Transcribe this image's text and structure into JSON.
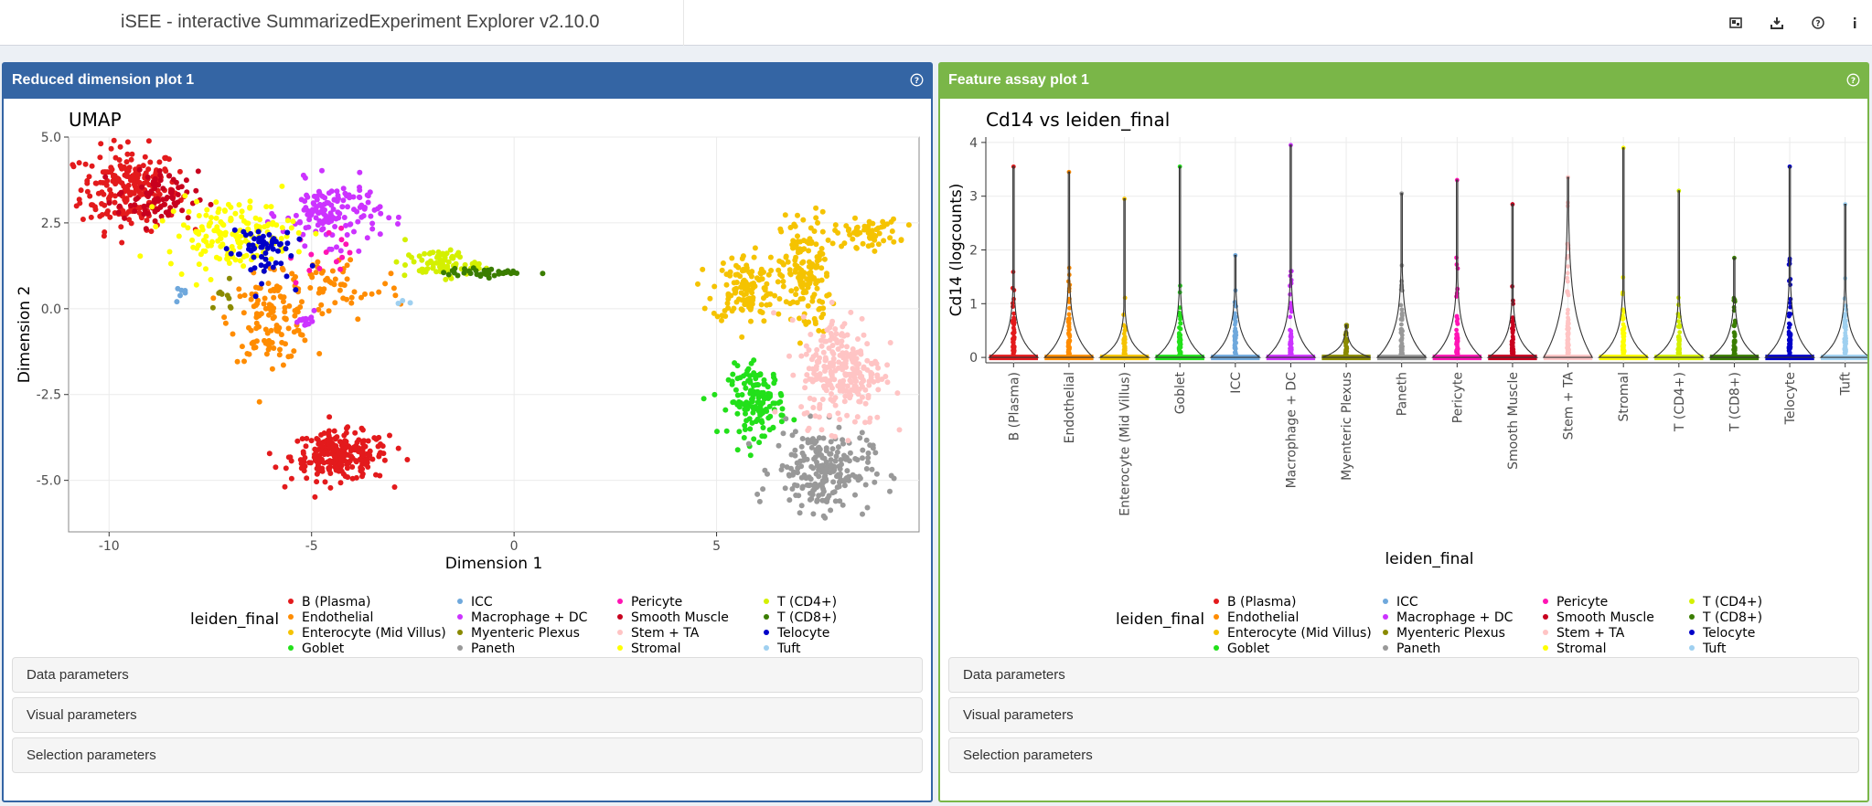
{
  "app": {
    "title": "iSEE - interactive SummarizedExperiment Explorer v2.10.0"
  },
  "toolbar": {
    "buttons": [
      {
        "name": "organize-panels-icon"
      },
      {
        "name": "download-icon"
      },
      {
        "name": "question-circle-icon"
      },
      {
        "name": "info-icon"
      }
    ]
  },
  "colors": {
    "blue_panel": "#3465a4",
    "green_panel": "#7ab648"
  },
  "legend": {
    "title": "leiden_final",
    "items": [
      {
        "label": "B (Plasma)",
        "color": "#e31a1c"
      },
      {
        "label": "Endothelial",
        "color": "#ff8c00"
      },
      {
        "label": "Enterocyte (Mid Villus)",
        "color": "#f5c300"
      },
      {
        "label": "Goblet",
        "color": "#22e01a"
      },
      {
        "label": "ICC",
        "color": "#6fa8dc"
      },
      {
        "label": "Macrophage + DC",
        "color": "#cc33ff"
      },
      {
        "label": "Myenteric Plexus",
        "color": "#8a8a00"
      },
      {
        "label": "Paneth",
        "color": "#999999"
      },
      {
        "label": "Pericyte",
        "color": "#ff14b4"
      },
      {
        "label": "Smooth Muscle",
        "color": "#c8001e"
      },
      {
        "label": "Stem + TA",
        "color": "#ffc4c4"
      },
      {
        "label": "Stromal",
        "color": "#ffff00"
      },
      {
        "label": "T (CD4+)",
        "color": "#d4f000"
      },
      {
        "label": "T (CD8+)",
        "color": "#3a7d00"
      },
      {
        "label": "Telocyte",
        "color": "#0000c8"
      },
      {
        "label": "Tuft",
        "color": "#9fd0f0"
      }
    ]
  },
  "panel_left": {
    "title": "Reduced dimension plot 1",
    "accordions": [
      "Data parameters",
      "Visual parameters",
      "Selection parameters"
    ]
  },
  "panel_right": {
    "title": "Feature assay plot 1",
    "accordions": [
      "Data parameters",
      "Visual parameters",
      "Selection parameters"
    ]
  },
  "chart_data": [
    {
      "type": "scatter",
      "title": "UMAP",
      "xlabel": "Dimension 1",
      "ylabel": "Dimension 2",
      "xlim": [
        -11,
        10
      ],
      "ylim": [
        -6.5,
        5
      ],
      "xticks": [
        -10,
        -5,
        0,
        5
      ],
      "yticks": [
        5.0,
        2.5,
        0.0,
        -2.5,
        -5.0
      ],
      "ytick_labels": [
        "5.0",
        "2.5",
        "0.0",
        "-2.5",
        "-5.0"
      ],
      "grid": true,
      "clusters": [
        {
          "name": "B (Plasma)",
          "cx": -9.5,
          "cy": 3.5,
          "sx": 0.6,
          "sy": 0.6,
          "n": 220
        },
        {
          "name": "B (Plasma)",
          "cx": -4.3,
          "cy": -4.3,
          "sx": 0.6,
          "sy": 0.35,
          "n": 240
        },
        {
          "name": "Endothelial",
          "cx": -6.0,
          "cy": -0.3,
          "sx": 0.5,
          "sy": 0.6,
          "n": 120
        },
        {
          "name": "Endothelial",
          "cx": -4.5,
          "cy": 0.6,
          "sx": 0.9,
          "sy": 0.5,
          "n": 60
        },
        {
          "name": "Enterocyte (Mid Villus)",
          "cx": 5.7,
          "cy": 0.6,
          "sx": 0.4,
          "sy": 0.5,
          "n": 130
        },
        {
          "name": "Enterocyte (Mid Villus)",
          "cx": 7.2,
          "cy": 1.0,
          "sx": 0.3,
          "sy": 0.9,
          "n": 150
        },
        {
          "name": "Enterocyte (Mid Villus)",
          "cx": 8.7,
          "cy": 2.2,
          "sx": 0.4,
          "sy": 0.2,
          "n": 60
        },
        {
          "name": "Goblet",
          "cx": 6.0,
          "cy": -2.7,
          "sx": 0.35,
          "sy": 0.5,
          "n": 150
        },
        {
          "name": "ICC",
          "cx": -8.2,
          "cy": 0.5,
          "sx": 0.1,
          "sy": 0.1,
          "n": 6
        },
        {
          "name": "Macrophage + DC",
          "cx": -4.5,
          "cy": 2.8,
          "sx": 0.6,
          "sy": 0.45,
          "n": 140
        },
        {
          "name": "Macrophage + DC",
          "cx": -5.1,
          "cy": -0.4,
          "sx": 0.1,
          "sy": 0.15,
          "n": 15
        },
        {
          "name": "Myenteric Plexus",
          "cx": -7.2,
          "cy": 0.3,
          "sx": 0.2,
          "sy": 0.2,
          "n": 10
        },
        {
          "name": "Paneth",
          "cx": 7.6,
          "cy": -4.7,
          "sx": 0.6,
          "sy": 0.6,
          "n": 220
        },
        {
          "name": "Pericyte",
          "cx": -4.8,
          "cy": 1.5,
          "sx": 0.4,
          "sy": 0.4,
          "n": 15
        },
        {
          "name": "Smooth Muscle",
          "cx": -8.8,
          "cy": 3.2,
          "sx": 0.5,
          "sy": 0.4,
          "n": 80
        },
        {
          "name": "Stem + TA",
          "cx": 8.1,
          "cy": -1.8,
          "sx": 0.5,
          "sy": 0.8,
          "n": 260
        },
        {
          "name": "Stromal",
          "cx": -7.0,
          "cy": 2.2,
          "sx": 0.8,
          "sy": 0.5,
          "n": 160
        },
        {
          "name": "T (CD4+)",
          "cx": -1.8,
          "cy": 1.3,
          "sx": 0.45,
          "sy": 0.2,
          "n": 80
        },
        {
          "name": "T (CD8+)",
          "cx": -0.7,
          "cy": 1.05,
          "sx": 0.5,
          "sy": 0.06,
          "n": 40
        },
        {
          "name": "Telocyte",
          "cx": -6.3,
          "cy": 1.7,
          "sx": 0.4,
          "sy": 0.45,
          "n": 60
        },
        {
          "name": "Tuft",
          "cx": -2.7,
          "cy": 0.2,
          "sx": 0.08,
          "sy": 0.05,
          "n": 3
        }
      ]
    },
    {
      "type": "violin",
      "title": "Cd14 vs leiden_final",
      "xlabel": "leiden_final",
      "ylabel": "Cd14 (logcounts)",
      "ylim": [
        -0.1,
        4.1
      ],
      "yticks": [
        0,
        1,
        2,
        3,
        4
      ],
      "grid": true,
      "categories": [
        "B (Plasma)",
        "Endothelial",
        "Enterocyte (Mid Villus)",
        "Goblet",
        "ICC",
        "Macrophage + DC",
        "Myenteric Plexus",
        "Paneth",
        "Pericyte",
        "Smooth Muscle",
        "Stem + TA",
        "Stromal",
        "T (CD4+)",
        "T (CD8+)",
        "Telocyte",
        "Tuft"
      ],
      "max_values": [
        3.55,
        3.45,
        2.95,
        3.55,
        1.9,
        3.95,
        0.6,
        3.05,
        3.3,
        2.85,
        3.35,
        3.9,
        3.1,
        1.85,
        3.55,
        2.85
      ],
      "spread": [
        0.35,
        0.4,
        0.25,
        0.35,
        0.35,
        0.4,
        0.15,
        0.45,
        0.4,
        0.3,
        0.75,
        0.35,
        0.3,
        0.3,
        0.4,
        0.35
      ]
    }
  ]
}
